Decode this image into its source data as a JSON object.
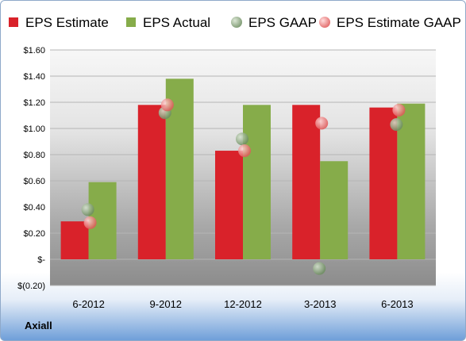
{
  "company": "Axiall",
  "chart_data": {
    "type": "bar",
    "categories": [
      "6-2012",
      "9-2012",
      "12-2012",
      "3-2013",
      "6-2013"
    ],
    "series": [
      {
        "name": "EPS Estimate",
        "kind": "bar",
        "color": "#d9222a",
        "values": [
          0.29,
          1.18,
          0.83,
          1.18,
          1.16
        ]
      },
      {
        "name": "EPS Actual",
        "kind": "bar",
        "color": "#86ac4a",
        "values": [
          0.59,
          1.38,
          1.18,
          0.75,
          1.19
        ]
      },
      {
        "name": "EPS GAAP",
        "kind": "marker",
        "color": "#8da882",
        "values": [
          0.38,
          1.12,
          0.92,
          -0.07,
          1.03
        ]
      },
      {
        "name": "EPS Estimate GAAP",
        "kind": "marker",
        "color": "#f08080",
        "values": [
          0.28,
          1.18,
          0.83,
          1.04,
          1.14
        ]
      }
    ],
    "yticks": [
      "$1.60",
      "$1.40",
      "$1.20",
      "$1.00",
      "$0.80",
      "$0.60",
      "$0.40",
      "$0.20",
      "$-",
      "$(0.20)"
    ],
    "ylim": [
      -0.2,
      1.6
    ],
    "grid": true,
    "legend_position": "top"
  }
}
